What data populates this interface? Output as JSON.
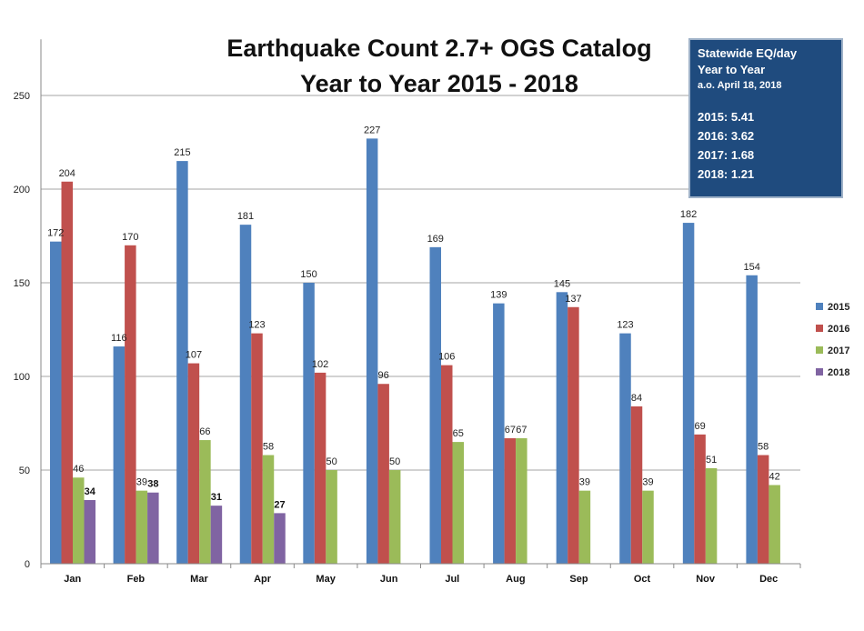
{
  "chart_data": {
    "type": "bar",
    "title_lines": [
      "Earthquake Count 2.7+ OGS Catalog",
      "Year to Year 2015 - 2018"
    ],
    "categories": [
      "Jan",
      "Feb",
      "Mar",
      "Apr",
      "May",
      "Jun",
      "Jul",
      "Aug",
      "Sep",
      "Oct",
      "Nov",
      "Dec"
    ],
    "series": [
      {
        "name": "2015",
        "color": "#4f81bd",
        "values": [
          172,
          116,
          215,
          181,
          150,
          227,
          169,
          139,
          145,
          123,
          182,
          154
        ]
      },
      {
        "name": "2016",
        "color": "#c0504d",
        "values": [
          204,
          170,
          107,
          123,
          102,
          96,
          106,
          67,
          137,
          84,
          69,
          58
        ]
      },
      {
        "name": "2017",
        "color": "#9bbb59",
        "values": [
          46,
          39,
          66,
          58,
          50,
          50,
          65,
          67,
          39,
          39,
          51,
          42
        ]
      },
      {
        "name": "2018",
        "color": "#8064a2",
        "values": [
          34,
          38,
          31,
          27,
          null,
          null,
          null,
          null,
          null,
          null,
          null,
          null
        ]
      }
    ],
    "yticks": [
      0,
      50,
      100,
      150,
      200,
      250
    ],
    "ylim": [
      0,
      280
    ],
    "grid": true,
    "legend_position": "right"
  },
  "infobox": {
    "line1": "Statewide EQ/day",
    "line2": "Year to Year",
    "line3": "a.o. April 18, 2018",
    "rates": [
      "2015: 5.41",
      "2016: 3.62",
      "2017: 1.68",
      "2018: 1.21"
    ]
  }
}
